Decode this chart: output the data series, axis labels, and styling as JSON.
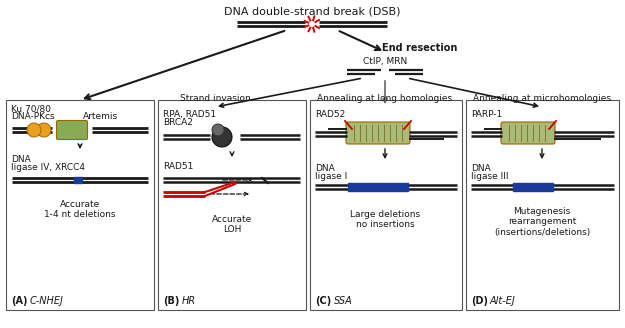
{
  "title": "DNA double-strand break (DSB)",
  "bg_color": "#ffffff",
  "panel_A_title1": "Ku 70/80",
  "panel_A_title2": "DNA-PKcs",
  "panel_A_title3": "Artemis",
  "panel_A_subtitle1": "DNA",
  "panel_A_subtitle2": "ligase IV, XRCC4",
  "panel_A_outcome": "Accurate\n1-4 nt deletions",
  "panel_B_title": "Strand invasion",
  "panel_B_proteins1": "RPA, RAD51",
  "panel_B_proteins2": "BRCA2",
  "panel_B_rad51": "RAD51",
  "panel_B_outcome": "Accurate\nLOH",
  "panel_C_title": "Annealing at long homologies",
  "panel_C_rad52": "RAD52",
  "panel_C_ligase1": "DNA",
  "panel_C_ligase2": "ligase I",
  "panel_C_outcome": "Large deletions\nno insertions",
  "panel_D_title": "Annealing at microhomologies",
  "panel_D_parp": "PARP-1",
  "panel_D_ligase1": "DNA",
  "panel_D_ligase2": "ligase III",
  "panel_D_outcome": "Mutagenesis\nrearrangement\n(insertions/deletions)",
  "end_resection": "End resection",
  "ctip_mrn": "CtIP, MRN",
  "dna_color": "#1a1a1a",
  "red_color": "#cc0000",
  "blue_color": "#1a3a99",
  "protein_green": "#8aaa55",
  "protein_green2": "#aabb77",
  "protein_orange": "#e8a020",
  "protein_border": "#996600"
}
